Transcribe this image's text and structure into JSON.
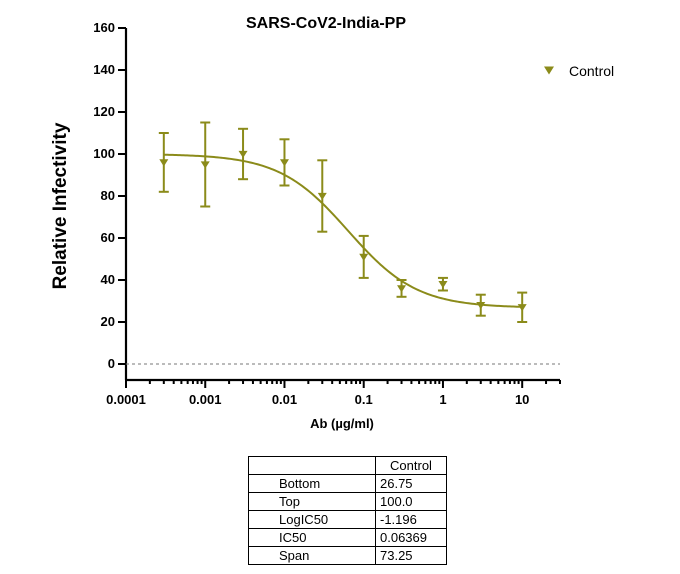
{
  "chart_data": {
    "type": "scatter",
    "title": "SARS-CoV2-India-PP",
    "xlabel": "Ab (µg/ml)",
    "ylabel": "Relative Infectivity",
    "x_scale": "log",
    "xlim": [
      0.0001,
      30
    ],
    "ylim": [
      0,
      160
    ],
    "x_ticks": [
      "0.0001",
      "0.001",
      "0.01",
      "0.1",
      "1",
      "10"
    ],
    "y_ticks": [
      "0",
      "20",
      "40",
      "60",
      "80",
      "100",
      "120",
      "140",
      "160"
    ],
    "legend_position": "top-right",
    "series": [
      {
        "name": "Control",
        "color": "#8b8b1a",
        "marker": "triangle-down",
        "x": [
          0.0003,
          0.001,
          0.003,
          0.01,
          0.03,
          0.1,
          0.3,
          1,
          3,
          10
        ],
        "y": [
          96,
          95,
          100,
          96,
          80,
          51,
          36,
          38,
          28,
          27
        ],
        "error": [
          14,
          20,
          12,
          11,
          17,
          10,
          4,
          3,
          5,
          7
        ]
      }
    ],
    "fit": {
      "bottom": 26.75,
      "top": 100.0,
      "log_ic50": -1.196,
      "hill_slope": -1
    },
    "zero_line": true
  },
  "results_table": {
    "column": "Control",
    "rows": [
      {
        "label": "Bottom",
        "value": "26.75"
      },
      {
        "label": "Top",
        "value": "100.0"
      },
      {
        "label": "LogIC50",
        "value": "-1.196"
      },
      {
        "label": "IC50",
        "value": "0.06369"
      },
      {
        "label": "Span",
        "value": "73.25"
      }
    ]
  }
}
